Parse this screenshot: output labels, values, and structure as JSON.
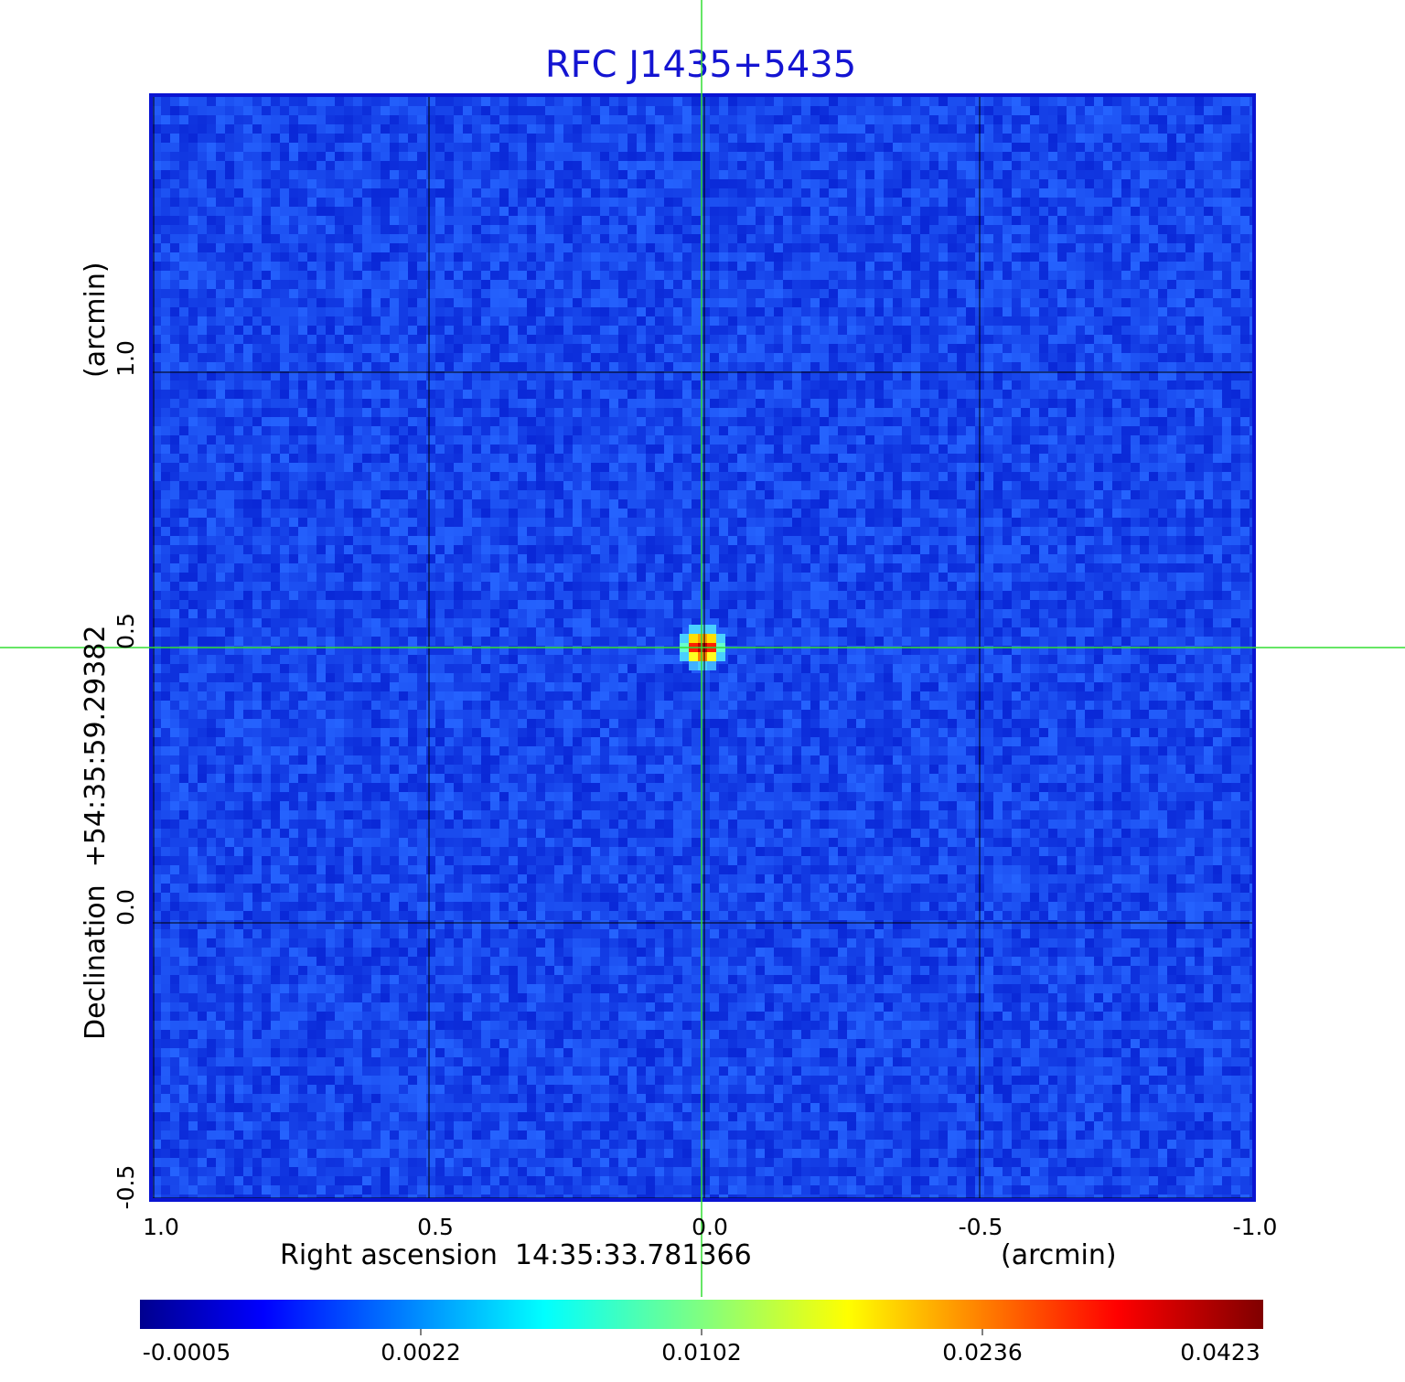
{
  "title": "RFC J1435+5435",
  "image": {
    "description_free": true,
    "colormap": "jet",
    "frame_color": "#0a14d2",
    "background_color": "#1e46f0",
    "source": {
      "ra_offset_arcmin": 0.0,
      "dec_offset_arcmin": 0.5,
      "peak": 0.0423
    }
  },
  "x_axis": {
    "label": "Right ascension  14:35:33.781366",
    "unit": "(arcmin)",
    "ticks": [
      "1.0",
      "0.5",
      "0.0",
      "-0.5",
      "-1.0"
    ],
    "range": [
      1.0,
      -1.0
    ]
  },
  "y_axis": {
    "label": "Declination  +54:35:59.29382",
    "unit": "(arcmin)",
    "ticks": [
      "1.0",
      "0.5",
      "0.0",
      "-0.5"
    ],
    "range": [
      -0.5,
      1.5
    ]
  },
  "crosshair": {
    "color": "#33dd33",
    "ra_arcmin": 0.0,
    "dec_arcmin": 0.5
  },
  "colorbar": {
    "ticks": [
      "-0.0005",
      "0.0022",
      "0.0102",
      "0.0236",
      "0.0423"
    ]
  }
}
